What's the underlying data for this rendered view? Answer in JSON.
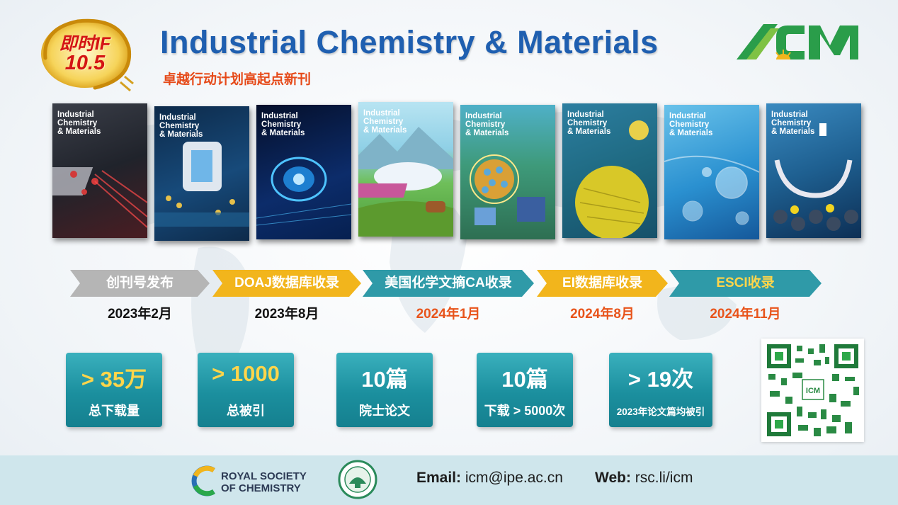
{
  "badge": {
    "line1": "即时IF",
    "line2": "10.5"
  },
  "header": {
    "title": "Industrial Chemistry & Materials",
    "subtitle": "卓越行动计划高起点新刊",
    "logo_text": "ICM"
  },
  "covers": [
    {
      "title": "Industrial\nChemistry\n& Materials",
      "theme": "dark-red"
    },
    {
      "title": "Industrial\nChemistry\n& Materials",
      "theme": "blue-machine"
    },
    {
      "title": "Industrial\nChemistry\n& Materials",
      "theme": "dark-blue"
    },
    {
      "title": "Industrial\nChemistry\n& Materials",
      "theme": "green-landscape"
    },
    {
      "title": "Industrial\nChemistry\n& Materials",
      "theme": "teal-city"
    },
    {
      "title": "Industrial\nChemistry\n& Materials",
      "theme": "yellow-sphere"
    },
    {
      "title": "Industrial\nChemistry\n& Materials",
      "theme": "light-blue-bubbles"
    },
    {
      "title": "Industrial\nChemistry\n& Materials",
      "theme": "blue-lattice"
    }
  ],
  "timeline": [
    {
      "label": "创刊号发布",
      "date": "2023年2月",
      "color": "#b5b5b5",
      "date_color": "#111111"
    },
    {
      "label": "DOAJ数据库收录",
      "date": "2023年8月",
      "color": "#f2b51c",
      "date_color": "#111111"
    },
    {
      "label": "美国化学文摘CA收录",
      "date": "2024年1月",
      "color": "#2f9aa8",
      "date_color": "#e8541b"
    },
    {
      "label": "EI数据库收录",
      "date": "2024年8月",
      "color": "#f2b51c",
      "date_color": "#e8541b"
    },
    {
      "label": "ESCI收录",
      "date": "2024年11月",
      "color": "#2f9aa8",
      "date_color": "#e8541b",
      "label_color": "#ffd54a"
    }
  ],
  "stats": [
    {
      "value": "> 35万",
      "label": "总下载量"
    },
    {
      "value": "> 1000",
      "label": "总被引"
    },
    {
      "value": "10篇",
      "label": "院士论文"
    },
    {
      "value": "10篇",
      "label": "下载 > 5000次"
    },
    {
      "value": "> 19次",
      "label": "2023年论文篇均被引"
    }
  ],
  "footer": {
    "rsc_name": "ROYAL SOCIETY\nOF CHEMISTRY",
    "email_label": "Email:",
    "email": "icm@ipe.ac.cn",
    "web_label": "Web:",
    "web": "rsc.li/icm"
  },
  "colors": {
    "title_blue": "#1f5fb0",
    "accent_red": "#e64a19",
    "teal": "#1b8f9e",
    "gold": "#ffd54a"
  }
}
